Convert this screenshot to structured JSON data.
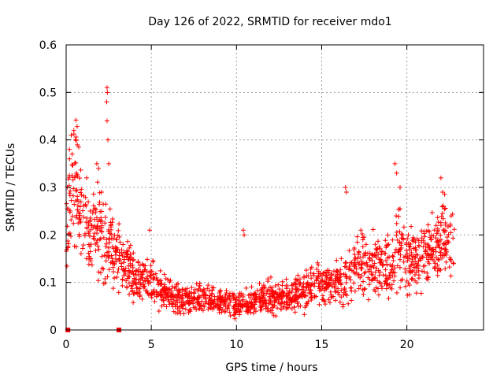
{
  "chart_data": {
    "type": "scatter",
    "title": "Day 126 of 2022, SRMTID for receiver mdo1",
    "xlabel": "GPS time / hours",
    "ylabel": "SRMTID / TECUs",
    "xlim": [
      0,
      24.5
    ],
    "ylim": [
      0,
      0.6
    ],
    "xticks": [
      "0",
      "5",
      "10",
      "15",
      "20"
    ],
    "xtick_values": [
      0,
      5,
      10,
      15,
      20
    ],
    "yticks": [
      "0",
      "0.1",
      "0.2",
      "0.3",
      "0.4",
      "0.5",
      "0.6"
    ],
    "ytick_values": [
      0,
      0.1,
      0.2,
      0.3,
      0.4,
      0.5,
      0.6
    ],
    "grid": true,
    "marker": "+",
    "series": [
      {
        "name": "SRMTID",
        "color": "#ff0000",
        "trend": {
          "x": [
            0,
            0.25,
            0.5,
            0.75,
            1,
            1.5,
            2,
            2.5,
            3,
            3.5,
            4,
            5,
            6,
            7,
            8,
            9,
            10,
            11,
            12,
            13,
            14,
            15,
            16,
            16.5,
            17,
            18,
            19,
            19.5,
            20,
            21,
            22,
            22.5,
            22.8
          ],
          "y": [
            0.2,
            0.3,
            0.33,
            0.28,
            0.22,
            0.2,
            0.21,
            0.18,
            0.16,
            0.13,
            0.11,
            0.1,
            0.07,
            0.065,
            0.065,
            0.06,
            0.05,
            0.06,
            0.07,
            0.07,
            0.08,
            0.1,
            0.1,
            0.1,
            0.14,
            0.14,
            0.13,
            0.2,
            0.14,
            0.16,
            0.18,
            0.19,
            0.18
          ]
        },
        "spikes": [
          {
            "x": 0.3,
            "y": 0.41
          },
          {
            "x": 0.45,
            "y": 0.42
          },
          {
            "x": 0.55,
            "y": 0.4
          },
          {
            "x": 0.2,
            "y": 0.36
          },
          {
            "x": 0.35,
            "y": 0.37
          },
          {
            "x": 0.6,
            "y": 0.33
          },
          {
            "x": 2.4,
            "y": 0.51
          },
          {
            "x": 2.42,
            "y": 0.5
          },
          {
            "x": 2.38,
            "y": 0.48
          },
          {
            "x": 2.4,
            "y": 0.44
          },
          {
            "x": 2.45,
            "y": 0.4
          },
          {
            "x": 2.5,
            "y": 0.35
          },
          {
            "x": 1.8,
            "y": 0.35
          },
          {
            "x": 1.9,
            "y": 0.34
          },
          {
            "x": 1.2,
            "y": 0.32
          },
          {
            "x": 10.4,
            "y": 0.21
          },
          {
            "x": 10.45,
            "y": 0.2
          },
          {
            "x": 16.4,
            "y": 0.3
          },
          {
            "x": 16.45,
            "y": 0.29
          },
          {
            "x": 19.3,
            "y": 0.35
          },
          {
            "x": 19.4,
            "y": 0.33
          },
          {
            "x": 19.6,
            "y": 0.3
          },
          {
            "x": 22.0,
            "y": 0.32
          },
          {
            "x": 22.1,
            "y": 0.29
          },
          {
            "x": 4.9,
            "y": 0.21
          },
          {
            "x": 22.6,
            "y": 0.24
          },
          {
            "x": 17.3,
            "y": 0.21
          }
        ],
        "zero_points": [
          {
            "x": 0.1,
            "y": 0.0
          },
          {
            "x": 3.1,
            "y": 0.0
          }
        ]
      }
    ]
  }
}
